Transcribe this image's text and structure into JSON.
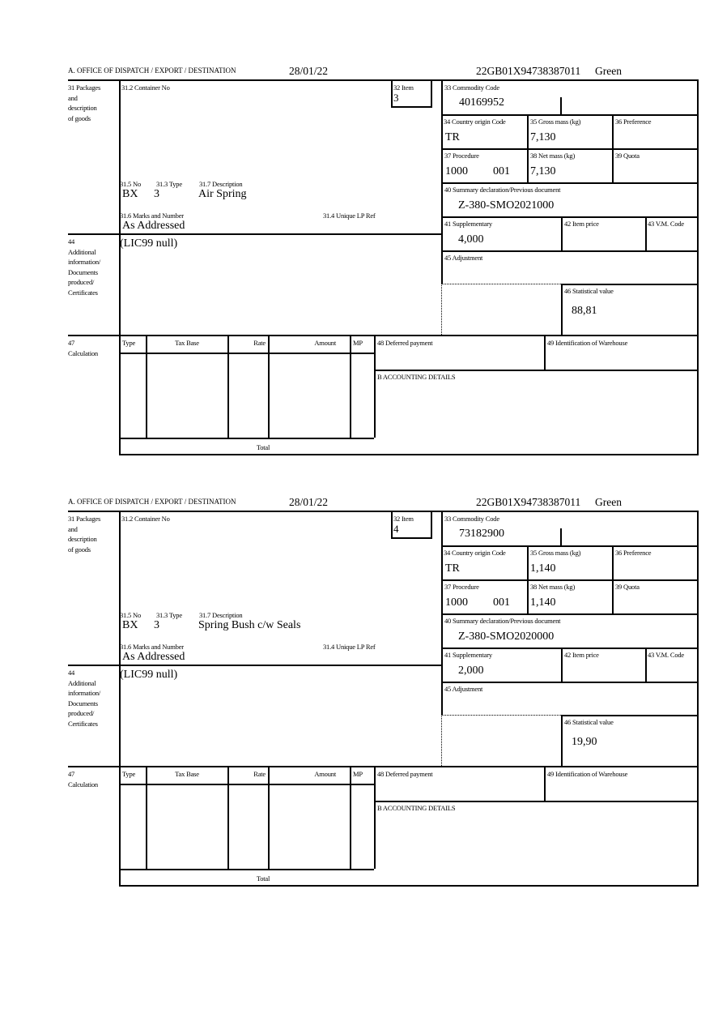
{
  "labels": {
    "office": "A. OFFICE OF DISPATCH / EXPORT / DESTINATION",
    "packages": [
      "31 Packages",
      "and",
      "description",
      "of goods"
    ],
    "container_no": "31.2 Container No",
    "item": "32 Item",
    "no": "31.5 No",
    "type": "31.3 Type",
    "description": "31.7 Description",
    "marks": "31.6 Marks and Number",
    "unique_lp_ref": "31.4 Unique LP Ref",
    "additional_info": [
      "44",
      "Additional",
      "information/",
      "Documents",
      "produced/",
      "Certificates"
    ],
    "calculation": [
      "47",
      "Calculation"
    ],
    "calc_headers": [
      "Type",
      "Tax Base",
      "Rate",
      "Amount",
      "MP"
    ],
    "total": "Total",
    "deferred_payment": "48 Deferred payment",
    "warehouse": "49 Identification of Warehouse",
    "accounting": "B ACCOUNTING DETAILS",
    "commodity_code": "33 Commodity Code",
    "country_origin": "34 Country origin Code",
    "gross_mass": "35 Gross mass (kg)",
    "preference": "36 Preference",
    "procedure": "37 Procedure",
    "net_mass": "38 Net mass (kg)",
    "quota": "39 Quota",
    "summary_declaration": "40 Summary declaration/Previous document",
    "supplementary": "41 Supplementary",
    "item_price": "42 Item price",
    "vm_code": "43 V.M. Code",
    "adjustment": "45 Adjustment",
    "statistical_value": "46 Statistical value"
  },
  "forms": [
    {
      "date": "28/01/22",
      "reference": "22GB01X94738387011",
      "route": "Green",
      "item": "3",
      "no": "BX",
      "type": "3",
      "description": "Air Spring",
      "marks": "As Addressed",
      "additional_info": "(LIC99 null)",
      "commodity_code": "40169952",
      "country_origin": "TR",
      "gross_mass": "7,130",
      "procedure": "1000",
      "procedure_additional": "001",
      "net_mass": "7,130",
      "summary_declaration": "Z-380-SMO2021000",
      "supplementary": "4,000",
      "statistical_value": "88,81"
    },
    {
      "date": "28/01/22",
      "reference": "22GB01X94738387011",
      "route": "Green",
      "item": "4",
      "no": "BX",
      "type": "3",
      "description": "Spring Bush c/w Seals",
      "marks": "As Addressed",
      "additional_info": "(LIC99 null)",
      "commodity_code": "73182900",
      "country_origin": "TR",
      "gross_mass": "1,140",
      "procedure": "1000",
      "procedure_additional": "001",
      "net_mass": "1,140",
      "summary_declaration": "Z-380-SMO2020000",
      "supplementary": "2,000",
      "statistical_value": "19,90"
    }
  ]
}
